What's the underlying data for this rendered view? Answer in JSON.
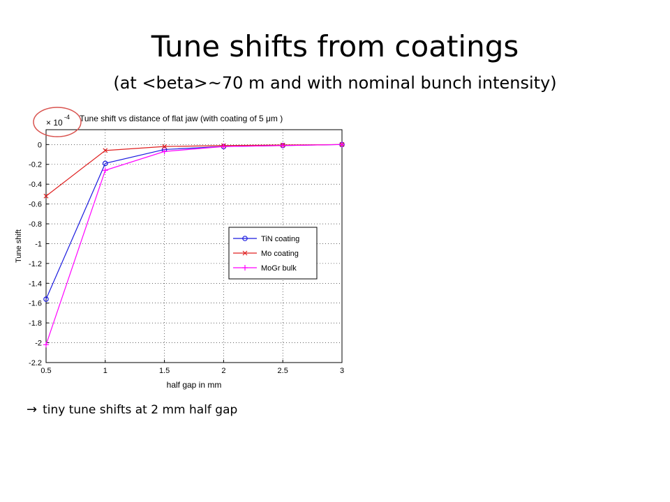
{
  "slide": {
    "title": "Tune shifts from coatings",
    "subtitle": "(at <beta>~70 m and with nominal bunch intensity)",
    "note_arrow": "→",
    "note_text": "tiny tune shifts at 2 mm half gap"
  },
  "colors": {
    "tin": "#1a1adf",
    "mo": "#e02020",
    "mogr": "#ff00ff",
    "annotation_circle": "#d9534f"
  },
  "chart_data": {
    "type": "line",
    "title": "Tune shift vs distance of flat jaw (with coating of 5 μm )",
    "xlabel": "half gap in mm",
    "ylabel": "Tune shift",
    "y_multiplier_base": "× 10",
    "y_multiplier_exp": "-4",
    "xlim": [
      0.5,
      3
    ],
    "ylim": [
      -2.2,
      0.15
    ],
    "xticks": [
      0.5,
      1,
      1.5,
      2,
      2.5,
      3
    ],
    "xtick_labels": [
      "0.5",
      "1",
      "1.5",
      "2",
      "2.5",
      "3"
    ],
    "yticks": [
      0,
      -0.2,
      -0.4,
      -0.6,
      -0.8,
      -1,
      -1.2,
      -1.4,
      -1.6,
      -1.8,
      -2,
      -2.2
    ],
    "ytick_labels": [
      "0",
      "-0.2",
      "-0.4",
      "-0.6",
      "-0.8",
      "-1",
      "-1.2",
      "-1.4",
      "-1.6",
      "-1.8",
      "-2",
      "-2.2"
    ],
    "grid": true,
    "legend_position": "center-right",
    "x": [
      0.5,
      1,
      1.5,
      2,
      2.5,
      3
    ],
    "series": [
      {
        "name": "TiN coating",
        "marker": "circle",
        "color": "#1a1adf",
        "values": [
          -1.56,
          -0.19,
          -0.05,
          -0.02,
          -0.01,
          0.0
        ]
      },
      {
        "name": "Mo coating",
        "marker": "x",
        "color": "#e02020",
        "values": [
          -0.52,
          -0.06,
          -0.02,
          -0.01,
          -0.005,
          0.0
        ]
      },
      {
        "name": "MoGr bulk",
        "marker": "plus",
        "color": "#ff00ff",
        "values": [
          -2.02,
          -0.26,
          -0.07,
          -0.02,
          -0.01,
          0.0
        ]
      }
    ]
  }
}
